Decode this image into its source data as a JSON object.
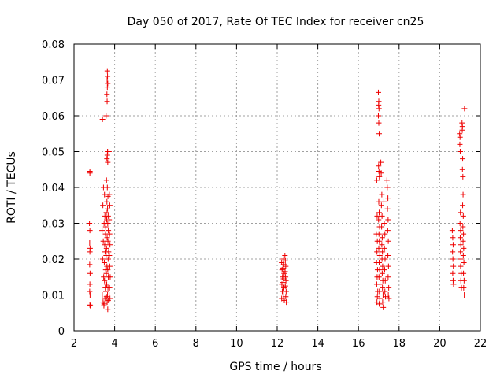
{
  "chart_data": {
    "type": "scatter",
    "title": "Day 050 of 2017, Rate Of TEC Index for receiver cn25",
    "xlabel": "GPS time / hours",
    "ylabel": "ROTI / TECUs",
    "xlim": [
      2,
      22
    ],
    "ylim": [
      0,
      0.08
    ],
    "xticks": [
      2,
      4,
      6,
      8,
      10,
      12,
      14,
      16,
      18,
      20,
      22
    ],
    "yticks": [
      0,
      0.01,
      0.02,
      0.03,
      0.04,
      0.05,
      0.06,
      0.07,
      0.08
    ],
    "xtick_labels": [
      "2",
      "4",
      "6",
      "8",
      "10",
      "12",
      "14",
      "16",
      "18",
      "20",
      "22"
    ],
    "ytick_labels": [
      "0",
      "0.01",
      "0.02",
      "0.03",
      "0.04",
      "0.05",
      "0.06",
      "0.07",
      "0.08"
    ],
    "grid": true,
    "marker": "+",
    "color": "#ee0000",
    "series": [
      {
        "name": "ROTI",
        "points": [
          [
            2.78,
            0.0445
          ],
          [
            2.78,
            0.044
          ],
          [
            2.76,
            0.03
          ],
          [
            2.78,
            0.028
          ],
          [
            2.77,
            0.0245
          ],
          [
            2.79,
            0.023
          ],
          [
            2.78,
            0.022
          ],
          [
            2.77,
            0.0185
          ],
          [
            2.79,
            0.016
          ],
          [
            2.78,
            0.013
          ],
          [
            2.77,
            0.011
          ],
          [
            2.79,
            0.01
          ],
          [
            2.78,
            0.0072
          ],
          [
            2.8,
            0.007
          ],
          [
            3.4,
            0.059
          ],
          [
            3.45,
            0.04
          ],
          [
            3.42,
            0.035
          ],
          [
            3.38,
            0.028
          ],
          [
            3.44,
            0.025
          ],
          [
            3.41,
            0.02
          ],
          [
            3.46,
            0.015
          ],
          [
            3.39,
            0.01
          ],
          [
            3.43,
            0.008
          ],
          [
            3.47,
            0.007
          ],
          [
            3.5,
            0.038
          ],
          [
            3.52,
            0.032
          ],
          [
            3.48,
            0.03
          ],
          [
            3.55,
            0.027
          ],
          [
            3.51,
            0.024
          ],
          [
            3.53,
            0.022
          ],
          [
            3.49,
            0.019
          ],
          [
            3.56,
            0.017
          ],
          [
            3.5,
            0.014
          ],
          [
            3.54,
            0.012
          ],
          [
            3.52,
            0.009
          ],
          [
            3.48,
            0.0075
          ],
          [
            3.58,
            0.06
          ],
          [
            3.6,
            0.042
          ],
          [
            3.57,
            0.039
          ],
          [
            3.62,
            0.036
          ],
          [
            3.59,
            0.033
          ],
          [
            3.61,
            0.031
          ],
          [
            3.56,
            0.029
          ],
          [
            3.63,
            0.026
          ],
          [
            3.6,
            0.023
          ],
          [
            3.58,
            0.021
          ],
          [
            3.62,
            0.018
          ],
          [
            3.59,
            0.016
          ],
          [
            3.61,
            0.013
          ],
          [
            3.57,
            0.011
          ],
          [
            3.6,
            0.0095
          ],
          [
            3.63,
            0.008
          ],
          [
            3.64,
            0.0725
          ],
          [
            3.65,
            0.071
          ],
          [
            3.63,
            0.07
          ],
          [
            3.66,
            0.069
          ],
          [
            3.64,
            0.068
          ],
          [
            3.62,
            0.066
          ],
          [
            3.63,
            0.064
          ],
          [
            3.65,
            0.05
          ],
          [
            3.64,
            0.049
          ],
          [
            3.62,
            0.048
          ],
          [
            3.66,
            0.047
          ],
          [
            3.64,
            0.04
          ],
          [
            3.67,
            0.0375
          ],
          [
            3.65,
            0.034
          ],
          [
            3.68,
            0.032
          ],
          [
            3.66,
            0.03
          ],
          [
            3.69,
            0.028
          ],
          [
            3.67,
            0.025
          ],
          [
            3.7,
            0.022
          ],
          [
            3.68,
            0.02
          ],
          [
            3.66,
            0.017
          ],
          [
            3.69,
            0.015
          ],
          [
            3.67,
            0.012
          ],
          [
            3.65,
            0.01
          ],
          [
            3.68,
            0.0085
          ],
          [
            3.66,
            0.006
          ],
          [
            3.72,
            0.05
          ],
          [
            3.74,
            0.038
          ],
          [
            3.76,
            0.035
          ],
          [
            3.73,
            0.031
          ],
          [
            3.75,
            0.027
          ],
          [
            3.77,
            0.024
          ],
          [
            3.74,
            0.021
          ],
          [
            3.76,
            0.018
          ],
          [
            3.78,
            0.015
          ],
          [
            3.75,
            0.012
          ],
          [
            3.73,
            0.01
          ],
          [
            3.77,
            0.009
          ],
          [
            12.22,
            0.019
          ],
          [
            12.24,
            0.017
          ],
          [
            12.26,
            0.015
          ],
          [
            12.23,
            0.013
          ],
          [
            12.25,
            0.011
          ],
          [
            12.22,
            0.009
          ],
          [
            12.3,
            0.02
          ],
          [
            12.32,
            0.0185
          ],
          [
            12.28,
            0.0175
          ],
          [
            12.34,
            0.016
          ],
          [
            12.31,
            0.0145
          ],
          [
            12.29,
            0.0135
          ],
          [
            12.33,
            0.012
          ],
          [
            12.3,
            0.01
          ],
          [
            12.35,
            0.0085
          ],
          [
            12.38,
            0.021
          ],
          [
            12.4,
            0.0195
          ],
          [
            12.42,
            0.018
          ],
          [
            12.39,
            0.0165
          ],
          [
            12.41,
            0.015
          ],
          [
            12.43,
            0.014
          ],
          [
            12.4,
            0.0125
          ],
          [
            12.44,
            0.011
          ],
          [
            12.42,
            0.0095
          ],
          [
            12.45,
            0.008
          ],
          [
            16.9,
            0.042
          ],
          [
            16.92,
            0.032
          ],
          [
            16.88,
            0.027
          ],
          [
            16.93,
            0.025
          ],
          [
            16.91,
            0.022
          ],
          [
            16.89,
            0.019
          ],
          [
            16.94,
            0.017
          ],
          [
            16.92,
            0.015
          ],
          [
            16.9,
            0.013
          ],
          [
            16.95,
            0.011
          ],
          [
            16.93,
            0.0095
          ],
          [
            16.91,
            0.008
          ],
          [
            16.98,
            0.0665
          ],
          [
            17.0,
            0.064
          ],
          [
            16.99,
            0.063
          ],
          [
            17.01,
            0.062
          ],
          [
            16.98,
            0.06
          ],
          [
            17.0,
            0.058
          ],
          [
            17.02,
            0.055
          ],
          [
            16.99,
            0.046
          ],
          [
            17.01,
            0.0445
          ],
          [
            17.03,
            0.043
          ],
          [
            17.0,
            0.036
          ],
          [
            17.02,
            0.033
          ],
          [
            16.99,
            0.031
          ],
          [
            17.04,
            0.029
          ],
          [
            17.01,
            0.027
          ],
          [
            17.03,
            0.025
          ],
          [
            17.0,
            0.023
          ],
          [
            17.05,
            0.021
          ],
          [
            17.02,
            0.019
          ],
          [
            17.04,
            0.017
          ],
          [
            17.01,
            0.015
          ],
          [
            17.06,
            0.013
          ],
          [
            17.03,
            0.011
          ],
          [
            17.05,
            0.009
          ],
          [
            17.02,
            0.0075
          ],
          [
            17.1,
            0.047
          ],
          [
            17.12,
            0.044
          ],
          [
            17.15,
            0.038
          ],
          [
            17.13,
            0.035
          ],
          [
            17.16,
            0.032
          ],
          [
            17.14,
            0.029
          ],
          [
            17.17,
            0.026
          ],
          [
            17.15,
            0.024
          ],
          [
            17.18,
            0.022
          ],
          [
            17.16,
            0.02
          ],
          [
            17.19,
            0.018
          ],
          [
            17.17,
            0.016
          ],
          [
            17.2,
            0.014
          ],
          [
            17.18,
            0.012
          ],
          [
            17.21,
            0.01
          ],
          [
            17.19,
            0.008
          ],
          [
            17.22,
            0.0065
          ],
          [
            17.25,
            0.036
          ],
          [
            17.27,
            0.03
          ],
          [
            17.3,
            0.027
          ],
          [
            17.28,
            0.023
          ],
          [
            17.31,
            0.02
          ],
          [
            17.29,
            0.017
          ],
          [
            17.32,
            0.014
          ],
          [
            17.3,
            0.011
          ],
          [
            17.33,
            0.0095
          ],
          [
            17.4,
            0.042
          ],
          [
            17.42,
            0.04
          ],
          [
            17.45,
            0.037
          ],
          [
            17.43,
            0.034
          ],
          [
            17.46,
            0.031
          ],
          [
            17.44,
            0.028
          ],
          [
            17.47,
            0.025
          ],
          [
            17.45,
            0.021
          ],
          [
            17.48,
            0.018
          ],
          [
            17.46,
            0.015
          ],
          [
            17.49,
            0.012
          ],
          [
            17.47,
            0.01
          ],
          [
            17.5,
            0.009
          ],
          [
            20.62,
            0.028
          ],
          [
            20.64,
            0.026
          ],
          [
            20.66,
            0.024
          ],
          [
            20.63,
            0.022
          ],
          [
            20.65,
            0.02
          ],
          [
            20.67,
            0.018
          ],
          [
            20.64,
            0.016
          ],
          [
            20.66,
            0.014
          ],
          [
            20.68,
            0.013
          ],
          [
            20.98,
            0.055
          ],
          [
            21.0,
            0.054
          ],
          [
            20.99,
            0.052
          ],
          [
            21.01,
            0.05
          ],
          [
            21.02,
            0.033
          ],
          [
            21.0,
            0.03
          ],
          [
            21.03,
            0.028
          ],
          [
            21.01,
            0.026
          ],
          [
            21.04,
            0.024
          ],
          [
            21.02,
            0.022
          ],
          [
            21.05,
            0.02
          ],
          [
            21.03,
            0.018
          ],
          [
            21.06,
            0.016
          ],
          [
            21.04,
            0.014
          ],
          [
            21.07,
            0.012
          ],
          [
            21.05,
            0.01
          ],
          [
            21.1,
            0.058
          ],
          [
            21.12,
            0.057
          ],
          [
            21.11,
            0.056
          ],
          [
            21.13,
            0.048
          ],
          [
            21.12,
            0.045
          ],
          [
            21.14,
            0.043
          ],
          [
            21.15,
            0.038
          ],
          [
            21.13,
            0.035
          ],
          [
            21.16,
            0.032
          ],
          [
            21.14,
            0.029
          ],
          [
            21.17,
            0.027
          ],
          [
            21.15,
            0.025
          ],
          [
            21.18,
            0.023
          ],
          [
            21.16,
            0.021
          ],
          [
            21.19,
            0.019
          ],
          [
            21.17,
            0.016
          ],
          [
            21.2,
            0.014
          ],
          [
            21.18,
            0.012
          ],
          [
            21.21,
            0.01
          ],
          [
            21.22,
            0.062
          ]
        ]
      }
    ]
  }
}
